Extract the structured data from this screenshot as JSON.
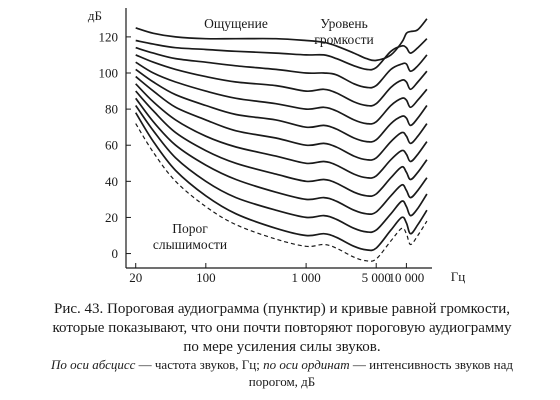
{
  "chart_data": {
    "type": "line",
    "title": "",
    "ylabel": "дБ",
    "xlabel": "Гц",
    "x_scale": "log",
    "xlim": [
      16,
      18000
    ],
    "ylim": [
      -8,
      136
    ],
    "x_ticks": [
      {
        "value": 20,
        "label": "20"
      },
      {
        "value": 100,
        "label": "100"
      },
      {
        "value": 1000,
        "label": "1 000"
      },
      {
        "value": 5000,
        "label": "5 000"
      },
      {
        "value": 10000,
        "label": "10 000"
      }
    ],
    "y_ticks": [
      {
        "value": 0,
        "label": "0"
      },
      {
        "value": 20,
        "label": "20"
      },
      {
        "value": 40,
        "label": "40"
      },
      {
        "value": 60,
        "label": "60"
      },
      {
        "value": 80,
        "label": "80"
      },
      {
        "value": 100,
        "label": "100"
      },
      {
        "value": 120,
        "label": "120"
      }
    ],
    "grid": false,
    "annotations": [
      {
        "text": "Ощущение",
        "position": "top-center"
      },
      {
        "text": "Уровень",
        "position": "top-right"
      },
      {
        "text": "громкости",
        "position": "top-right"
      },
      {
        "text": "Порог",
        "position": "bottom-left"
      },
      {
        "text": "слышимости",
        "position": "bottom-left"
      }
    ],
    "threshold": {
      "style": "dashed",
      "x": [
        20,
        30,
        50,
        100,
        200,
        500,
        1000,
        1500,
        2000,
        3000,
        4000,
        5000,
        7000,
        9000,
        10000,
        11000,
        13000,
        16000
      ],
      "y": [
        72,
        56,
        40,
        26,
        16,
        8,
        4,
        5,
        3,
        -2,
        -4,
        -3,
        7,
        14,
        11,
        5,
        10,
        18
      ]
    },
    "series": [
      {
        "x": [
          20,
          30,
          50,
          100,
          200,
          500,
          1000,
          1500,
          2000,
          3000,
          4000,
          5000,
          7000,
          9000,
          10000,
          11000,
          13000,
          16000
        ],
        "y": [
          78,
          62,
          46,
          32,
          22,
          14,
          10,
          11,
          9,
          4,
          2,
          3,
          13,
          20,
          17,
          11,
          16,
          24
        ]
      },
      {
        "x": [
          20,
          30,
          50,
          100,
          200,
          500,
          1000,
          1500,
          2000,
          3000,
          4000,
          5000,
          7000,
          9000,
          10000,
          11000,
          13000,
          16000
        ],
        "y": [
          82,
          68,
          53,
          40,
          31,
          24,
          20,
          21,
          19,
          14,
          12,
          13,
          22,
          29,
          26,
          21,
          25,
          33
        ]
      },
      {
        "x": [
          20,
          30,
          50,
          100,
          200,
          500,
          1000,
          1500,
          2000,
          3000,
          4000,
          5000,
          7000,
          9000,
          10000,
          11000,
          13000,
          16000
        ],
        "y": [
          86,
          73,
          60,
          49,
          41,
          34,
          30,
          31,
          29,
          24,
          22,
          23,
          32,
          38,
          35,
          31,
          35,
          42
        ]
      },
      {
        "x": [
          20,
          30,
          50,
          100,
          200,
          500,
          1000,
          1500,
          2000,
          3000,
          4000,
          5000,
          7000,
          9000,
          10000,
          11000,
          13000,
          16000
        ],
        "y": [
          90,
          79,
          67,
          57,
          50,
          44,
          40,
          41,
          39,
          34,
          32,
          33,
          42,
          48,
          45,
          41,
          45,
          52
        ]
      },
      {
        "x": [
          20,
          30,
          50,
          100,
          200,
          500,
          1000,
          1500,
          2000,
          3000,
          4000,
          5000,
          7000,
          9000,
          10000,
          11000,
          13000,
          16000
        ],
        "y": [
          94,
          84,
          74,
          65,
          59,
          54,
          50,
          51,
          49,
          44,
          42,
          43,
          52,
          57,
          55,
          51,
          55,
          62
        ]
      },
      {
        "x": [
          20,
          30,
          50,
          100,
          200,
          500,
          1000,
          1500,
          2000,
          3000,
          4000,
          5000,
          7000,
          9000,
          10000,
          11000,
          13000,
          16000
        ],
        "y": [
          98,
          90,
          81,
          74,
          68,
          64,
          60,
          61,
          59,
          54,
          52,
          53,
          62,
          67,
          65,
          61,
          65,
          72
        ]
      },
      {
        "x": [
          20,
          30,
          50,
          100,
          200,
          500,
          1000,
          1500,
          2000,
          3000,
          4000,
          5000,
          7000,
          9000,
          10000,
          11000,
          13000,
          16000
        ],
        "y": [
          102,
          95,
          88,
          82,
          77,
          74,
          70,
          71,
          69,
          64,
          62,
          63,
          72,
          76,
          75,
          71,
          75,
          82
        ]
      },
      {
        "x": [
          20,
          30,
          50,
          100,
          200,
          500,
          1000,
          1500,
          2000,
          3000,
          4000,
          5000,
          7000,
          9000,
          10000,
          11000,
          13000,
          16000
        ],
        "y": [
          106,
          100,
          95,
          90,
          86,
          83,
          80,
          81,
          79,
          74,
          72,
          73,
          82,
          86,
          85,
          81,
          85,
          91
        ]
      },
      {
        "x": [
          20,
          30,
          50,
          100,
          200,
          500,
          1000,
          1500,
          2000,
          3000,
          4000,
          5000,
          7000,
          9000,
          10000,
          11000,
          13000,
          16000
        ],
        "y": [
          110,
          106,
          102,
          98,
          95,
          93,
          90,
          91,
          89,
          84,
          82,
          83,
          92,
          96,
          95,
          91,
          95,
          101
        ]
      },
      {
        "x": [
          20,
          30,
          50,
          100,
          200,
          500,
          1000,
          1500,
          2000,
          3000,
          4000,
          5000,
          7000,
          9000,
          10000,
          11000,
          13000,
          16000
        ],
        "y": [
          114,
          111,
          108,
          106,
          104,
          102,
          100,
          100,
          99,
          94,
          92,
          93,
          102,
          105,
          105,
          101,
          104,
          110
        ]
      },
      {
        "x": [
          20,
          30,
          50,
          100,
          200,
          500,
          1000,
          1500,
          2000,
          3000,
          4000,
          5000,
          7000,
          9000,
          10000,
          11000,
          13000,
          16000
        ],
        "y": [
          118,
          116,
          114,
          113,
          112,
          111,
          110,
          110,
          108,
          104,
          102,
          103,
          112,
          115,
          114,
          111,
          114,
          119
        ]
      },
      {
        "x": [
          20,
          30,
          50,
          100,
          200,
          500,
          1000,
          1500,
          2000,
          3000,
          4000,
          5000,
          7000,
          9000,
          10000,
          11000,
          13000,
          16000
        ],
        "y": [
          125,
          122,
          120,
          119,
          119,
          119,
          118,
          117,
          115,
          111,
          108,
          107,
          110,
          117,
          122,
          123,
          124,
          130
        ]
      }
    ]
  },
  "caption": {
    "lines": [
      "Рис. 43. Пороговая аудиограмма (пунктир) и кривые равной громкости,",
      "которые показывают, что они почти повторяют пороговую аудиограмму",
      "по мере усиления силы звуков."
    ],
    "sub_line1": [
      {
        "text": "По оси абсцисс",
        "italic": true
      },
      {
        "text": " — частота звуков, Гц; ",
        "italic": false
      },
      {
        "text": "по оси ординат",
        "italic": true
      },
      {
        "text": " — интенсивность звуков над",
        "italic": false
      }
    ],
    "sub_line2": "порогом, дБ"
  }
}
